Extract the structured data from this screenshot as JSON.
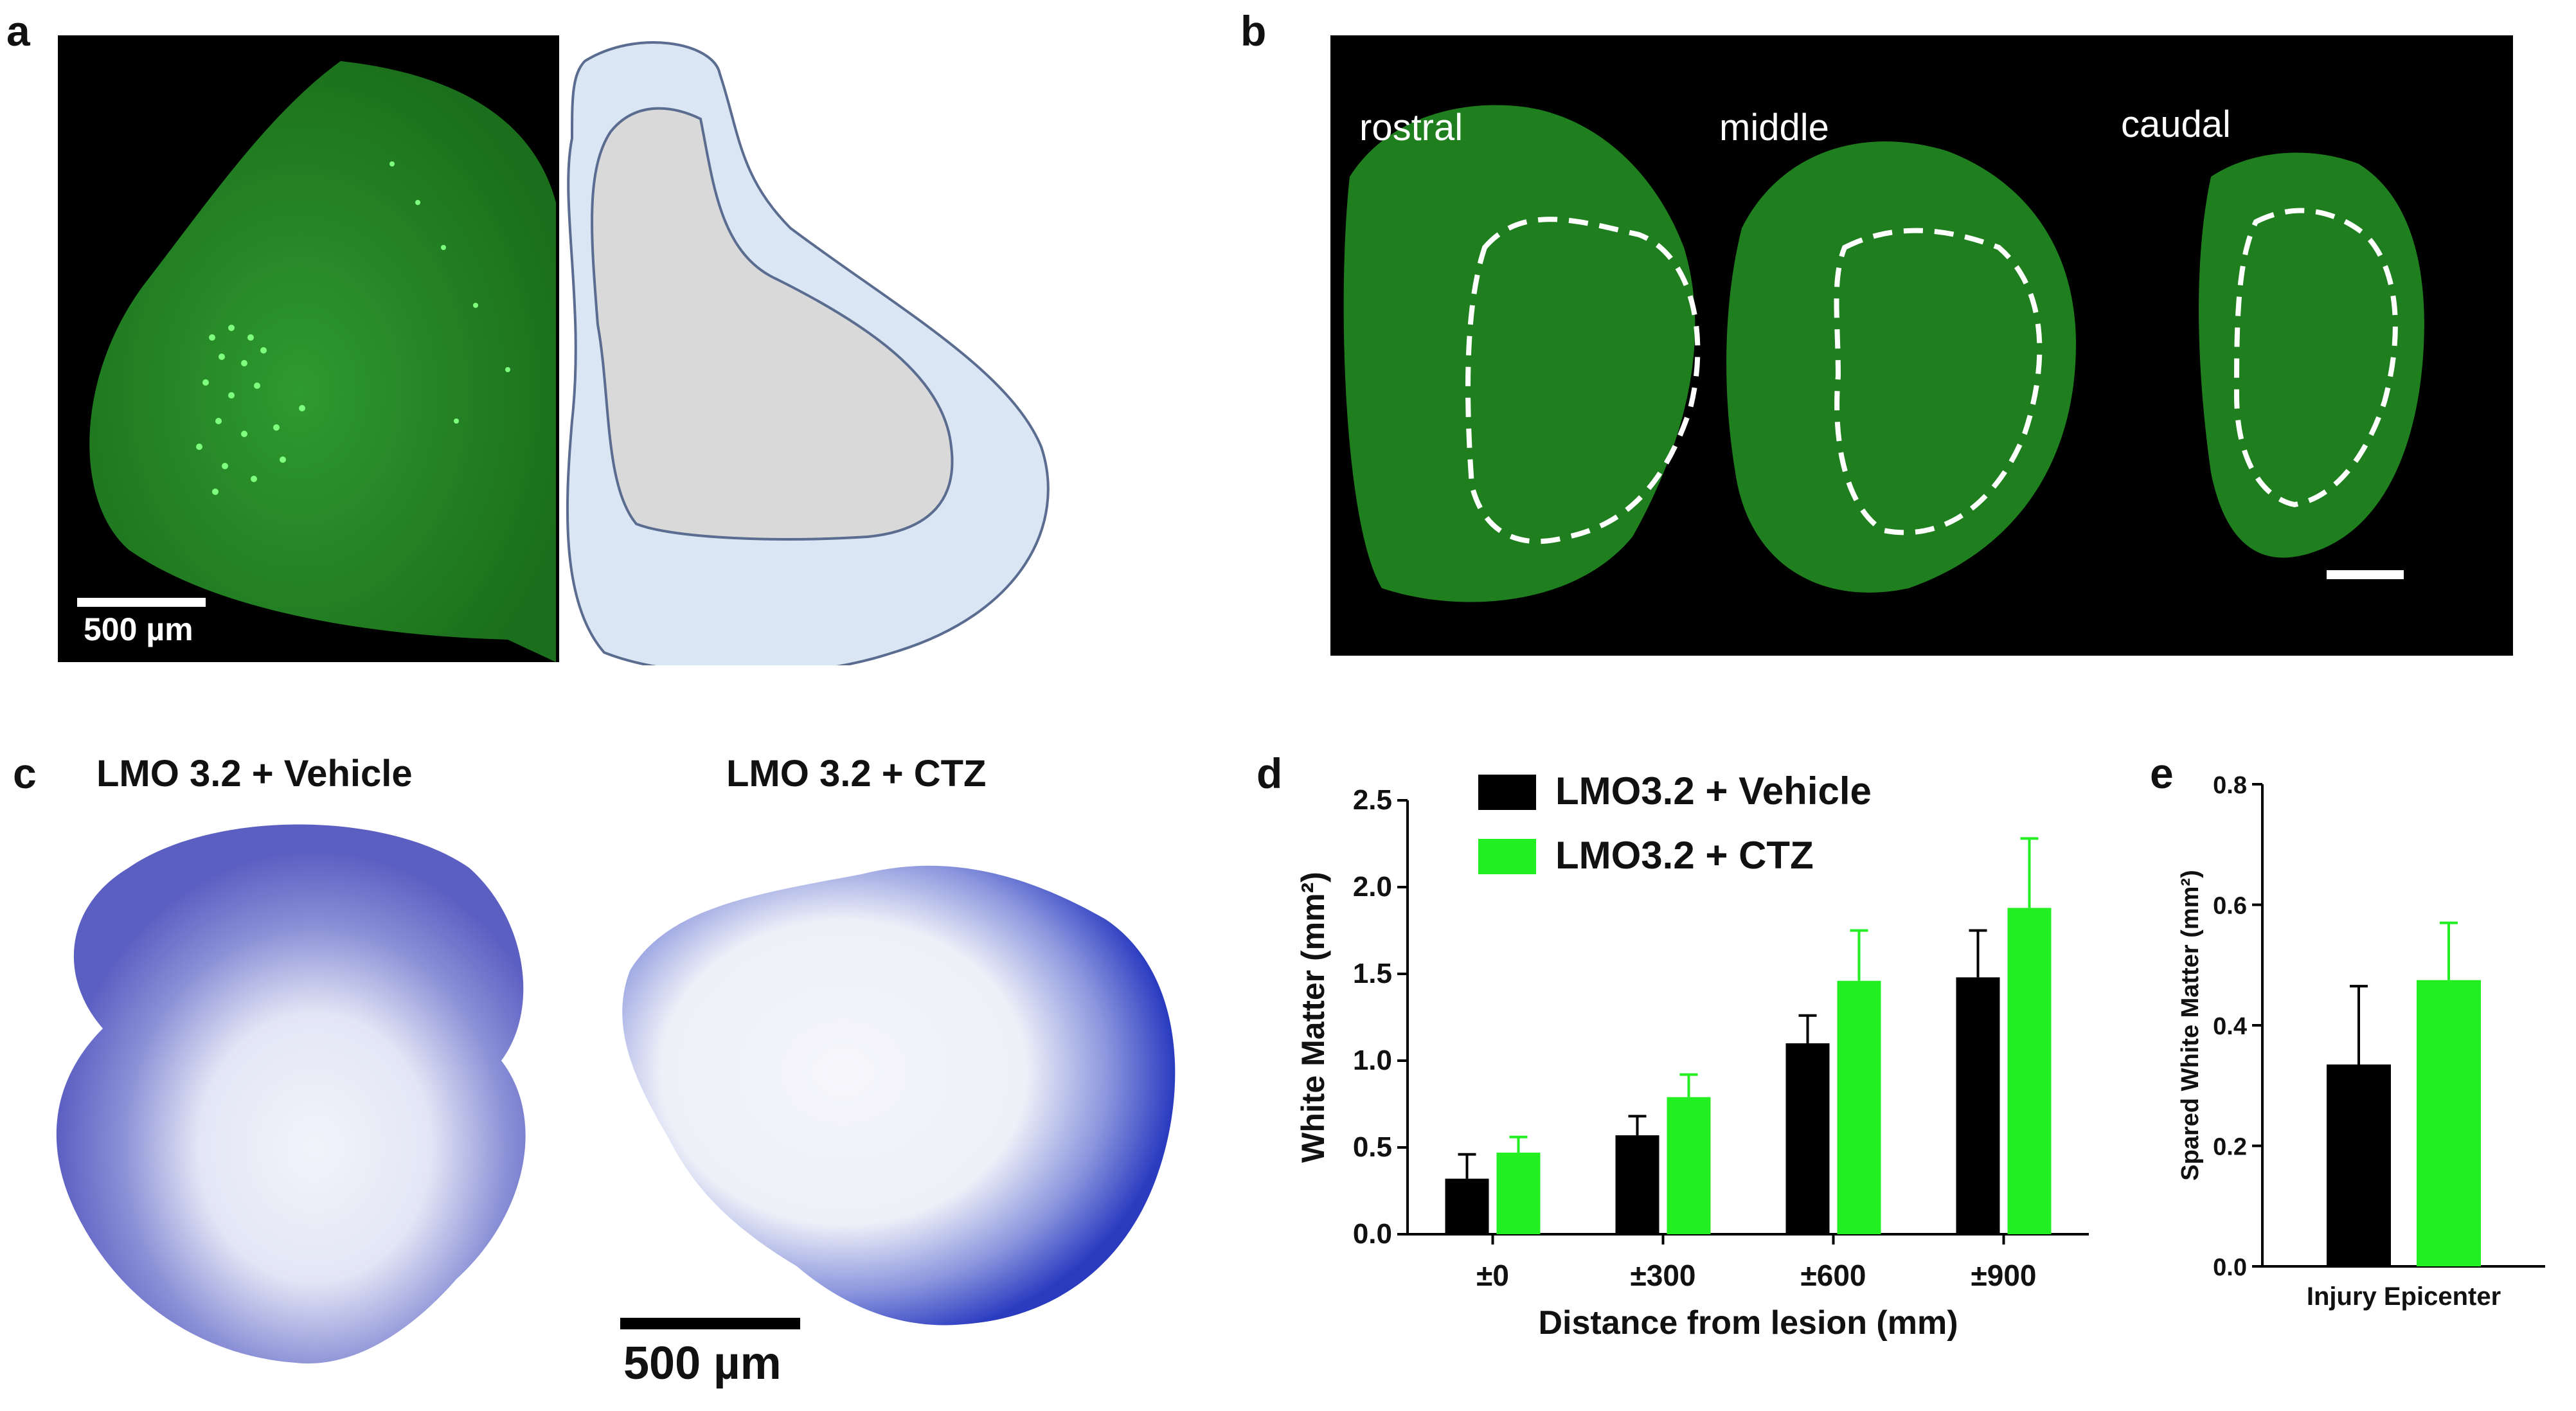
{
  "panels": {
    "a": {
      "label": "a",
      "scalebar_text": "500 µm"
    },
    "b": {
      "label": "b",
      "section_labels": [
        "rostral",
        "middle",
        "caudal"
      ]
    },
    "c": {
      "label": "c",
      "conditions": [
        "LMO 3.2 + Vehicle",
        "LMO 3.2 + CTZ"
      ],
      "scalebar_text": "500 µm"
    },
    "d": {
      "label": "d"
    },
    "e": {
      "label": "e"
    }
  },
  "colors": {
    "vehicle": "#000000",
    "ctz": "#22ee22",
    "fluorescence": "#2aa02a",
    "outline": "#dbe6f5",
    "gray": "#d9d9d9",
    "stain": "#4d55c8"
  },
  "chart_data": [
    {
      "type": "bar",
      "categories": [
        "±0",
        "±300",
        "±600",
        "±900"
      ],
      "series": [
        {
          "name": "LMO3.2 + Vehicle",
          "values": [
            0.32,
            0.57,
            1.1,
            1.48
          ],
          "errors": [
            0.14,
            0.11,
            0.16,
            0.27
          ]
        },
        {
          "name": "LMO3.2 + CTZ",
          "values": [
            0.47,
            0.79,
            1.46,
            1.88
          ],
          "errors": [
            0.09,
            0.13,
            0.29,
            0.4
          ]
        }
      ],
      "xlabel": "Distance from lesion (mm)",
      "ylabel": "White Matter (mm²)",
      "ylim": [
        0,
        2.5
      ],
      "yticks": [
        "0.0",
        "0.5",
        "1.0",
        "1.5",
        "2.0",
        "2.5"
      ],
      "legend_placement": "top-left"
    },
    {
      "type": "bar",
      "categories": [
        "Injury Epicenter"
      ],
      "series": [
        {
          "name": "LMO3.2 + Vehicle",
          "values": [
            0.335
          ],
          "errors": [
            0.13
          ]
        },
        {
          "name": "LMO3.2 + CTZ",
          "values": [
            0.475
          ],
          "errors": [
            0.095
          ]
        }
      ],
      "xlabel": "",
      "ylabel": "Spared White Matter (mm²)",
      "ylim": [
        0,
        0.8
      ],
      "yticks": [
        "0.0",
        "0.2",
        "0.4",
        "0.6",
        "0.8"
      ]
    }
  ]
}
